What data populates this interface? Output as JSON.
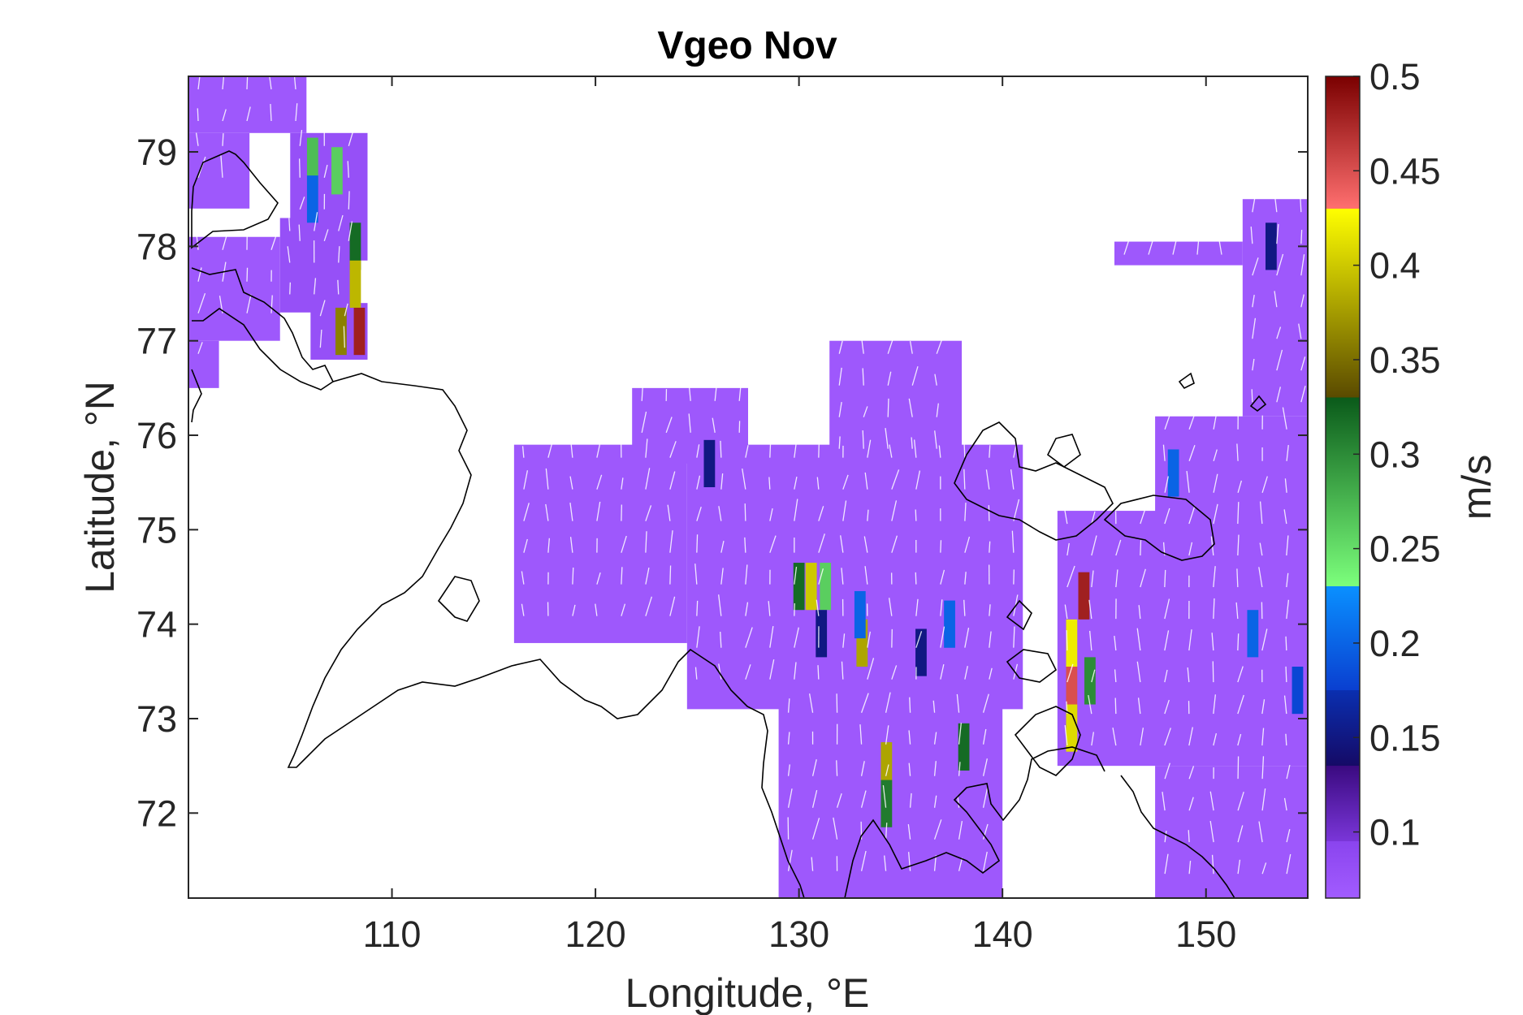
{
  "chart_data": {
    "type": "heatmap",
    "title": "Vgeo Nov",
    "xlabel": "Longitude, °E",
    "ylabel": "Latitude, °N",
    "xlim": [
      100,
      155
    ],
    "ylim": [
      71.1,
      79.8
    ],
    "xticks": [
      110,
      120,
      130,
      140,
      150
    ],
    "yticks": [
      72,
      73,
      74,
      75,
      76,
      77,
      78,
      79
    ],
    "colorbar": {
      "label": "m/s",
      "range": [
        0.065,
        0.5
      ],
      "ticks": [
        0.1,
        0.15,
        0.2,
        0.25,
        0.3,
        0.35,
        0.4,
        0.45,
        0.5
      ],
      "segments": [
        {
          "from": 0.065,
          "to": 0.095,
          "color_low": "#a25cff",
          "color_high": "#8a44ee"
        },
        {
          "from": 0.095,
          "to": 0.135,
          "color_low": "#7a36d8",
          "color_high": "#3a0a80"
        },
        {
          "from": 0.135,
          "to": 0.175,
          "color_low": "#150a66",
          "color_high": "#0a2fb0"
        },
        {
          "from": 0.175,
          "to": 0.23,
          "color_low": "#0a3fd0",
          "color_high": "#0a90ff"
        },
        {
          "from": 0.23,
          "to": 0.33,
          "color_low": "#7cff7c",
          "color_high": "#0a5a1a"
        },
        {
          "from": 0.33,
          "to": 0.43,
          "color_low": "#5a4a00",
          "color_high": "#ffff00"
        },
        {
          "from": 0.43,
          "to": 0.5,
          "color_low": "#ff6f6f",
          "color_high": "#7a0000"
        }
      ]
    },
    "regions": [
      {
        "lon": [
          100,
          105.8
        ],
        "lat": [
          79.2,
          79.8
        ],
        "value": 0.07
      },
      {
        "lon": [
          100,
          103
        ],
        "lat": [
          78.4,
          79.2
        ],
        "value": 0.07
      },
      {
        "lon": [
          105,
          108.8
        ],
        "lat": [
          77.85,
          79.2
        ],
        "value": 0.08
      },
      {
        "lon": [
          104.5,
          108
        ],
        "lat": [
          77.3,
          78.3
        ],
        "value": 0.08
      },
      {
        "lon": [
          100,
          104.5
        ],
        "lat": [
          77.0,
          78.1
        ],
        "value": 0.07
      },
      {
        "lon": [
          100,
          101.5
        ],
        "lat": [
          76.5,
          77.0
        ],
        "value": 0.07
      },
      {
        "lon": [
          106,
          108.8
        ],
        "lat": [
          76.8,
          77.4
        ],
        "value": 0.08
      },
      {
        "lon": [
          116,
          124.5
        ],
        "lat": [
          73.8,
          75.9
        ],
        "value": 0.07
      },
      {
        "lon": [
          121.8,
          127.5
        ],
        "lat": [
          75.7,
          76.5
        ],
        "value": 0.07
      },
      {
        "lon": [
          124.5,
          141
        ],
        "lat": [
          73.1,
          75.9
        ],
        "value": 0.07
      },
      {
        "lon": [
          131.5,
          138
        ],
        "lat": [
          75.6,
          77.0
        ],
        "value": 0.07
      },
      {
        "lon": [
          129,
          140
        ],
        "lat": [
          71.1,
          73.2
        ],
        "value": 0.07
      },
      {
        "lon": [
          142.7,
          155
        ],
        "lat": [
          72.5,
          75.2
        ],
        "value": 0.07
      },
      {
        "lon": [
          147.5,
          155
        ],
        "lat": [
          75.0,
          76.2
        ],
        "value": 0.07
      },
      {
        "lon": [
          151.8,
          155
        ],
        "lat": [
          76.2,
          78.5
        ],
        "value": 0.07
      },
      {
        "lon": [
          145.5,
          151.8
        ],
        "lat": [
          77.8,
          78.05
        ],
        "value": 0.07
      },
      {
        "lon": [
          147.5,
          155
        ],
        "lat": [
          71.1,
          72.5
        ],
        "value": 0.07
      }
    ],
    "highlight_cells": [
      {
        "lon": 106.1,
        "lat": 78.9,
        "value": 0.27
      },
      {
        "lon": 106.1,
        "lat": 78.5,
        "value": 0.2
      },
      {
        "lon": 107.3,
        "lat": 78.8,
        "value": 0.26
      },
      {
        "lon": 108.2,
        "lat": 78.0,
        "value": 0.32
      },
      {
        "lon": 108.2,
        "lat": 77.6,
        "value": 0.39
      },
      {
        "lon": 108.4,
        "lat": 77.1,
        "value": 0.48
      },
      {
        "lon": 107.5,
        "lat": 77.1,
        "value": 0.36
      },
      {
        "lon": 125.6,
        "lat": 75.7,
        "value": 0.15
      },
      {
        "lon": 130.0,
        "lat": 74.4,
        "value": 0.32
      },
      {
        "lon": 130.6,
        "lat": 74.4,
        "value": 0.4
      },
      {
        "lon": 131.3,
        "lat": 74.4,
        "value": 0.26
      },
      {
        "lon": 133.1,
        "lat": 73.8,
        "value": 0.38
      },
      {
        "lon": 131.1,
        "lat": 73.9,
        "value": 0.15
      },
      {
        "lon": 133.0,
        "lat": 74.1,
        "value": 0.2
      },
      {
        "lon": 134.3,
        "lat": 72.5,
        "value": 0.38
      },
      {
        "lon": 134.3,
        "lat": 72.1,
        "value": 0.31
      },
      {
        "lon": 136.0,
        "lat": 73.7,
        "value": 0.15
      },
      {
        "lon": 137.4,
        "lat": 74.0,
        "value": 0.2
      },
      {
        "lon": 138.1,
        "lat": 72.7,
        "value": 0.32
      },
      {
        "lon": 143.4,
        "lat": 73.8,
        "value": 0.42
      },
      {
        "lon": 143.4,
        "lat": 73.3,
        "value": 0.45
      },
      {
        "lon": 143.4,
        "lat": 72.9,
        "value": 0.41
      },
      {
        "lon": 144.3,
        "lat": 73.4,
        "value": 0.3
      },
      {
        "lon": 144.0,
        "lat": 74.3,
        "value": 0.48
      },
      {
        "lon": 148.4,
        "lat": 75.6,
        "value": 0.2
      },
      {
        "lon": 152.3,
        "lat": 73.9,
        "value": 0.2
      },
      {
        "lon": 154.5,
        "lat": 73.3,
        "value": 0.18
      },
      {
        "lon": 153.2,
        "lat": 78.0,
        "value": 0.15
      }
    ]
  }
}
